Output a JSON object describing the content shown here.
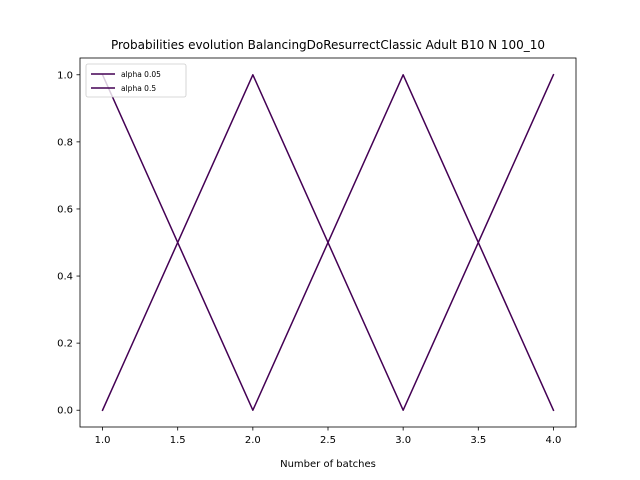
{
  "chart_data": {
    "type": "line",
    "title": "Probabilities evolution BalancingDoResurrectClassic Adult B10 N 100_10",
    "xlabel": "Number of batches",
    "ylabel": "",
    "xlim": [
      0.85,
      4.15
    ],
    "ylim": [
      -0.05,
      1.05
    ],
    "x_ticks": [
      1.0,
      1.5,
      2.0,
      2.5,
      3.0,
      3.5,
      4.0
    ],
    "y_ticks": [
      0.0,
      0.2,
      0.4,
      0.6,
      0.8,
      1.0
    ],
    "x_tick_labels": [
      "1.0",
      "1.5",
      "2.0",
      "2.5",
      "3.0",
      "3.5",
      "4.0"
    ],
    "y_tick_labels": [
      "0.0",
      "0.2",
      "0.4",
      "0.6",
      "0.8",
      "1.0"
    ],
    "grid": false,
    "legend_position": "top-left",
    "series": [
      {
        "name": "alpha 0.05",
        "color": "#440154",
        "x": [
          1,
          2,
          3,
          4
        ],
        "y": [
          1.0,
          0.0,
          1.0,
          0.0
        ]
      },
      {
        "name": "alpha 0.5",
        "color": "#440154",
        "x": [
          1,
          2,
          3,
          4
        ],
        "y": [
          0.0,
          1.0,
          0.0,
          1.0
        ]
      }
    ]
  }
}
